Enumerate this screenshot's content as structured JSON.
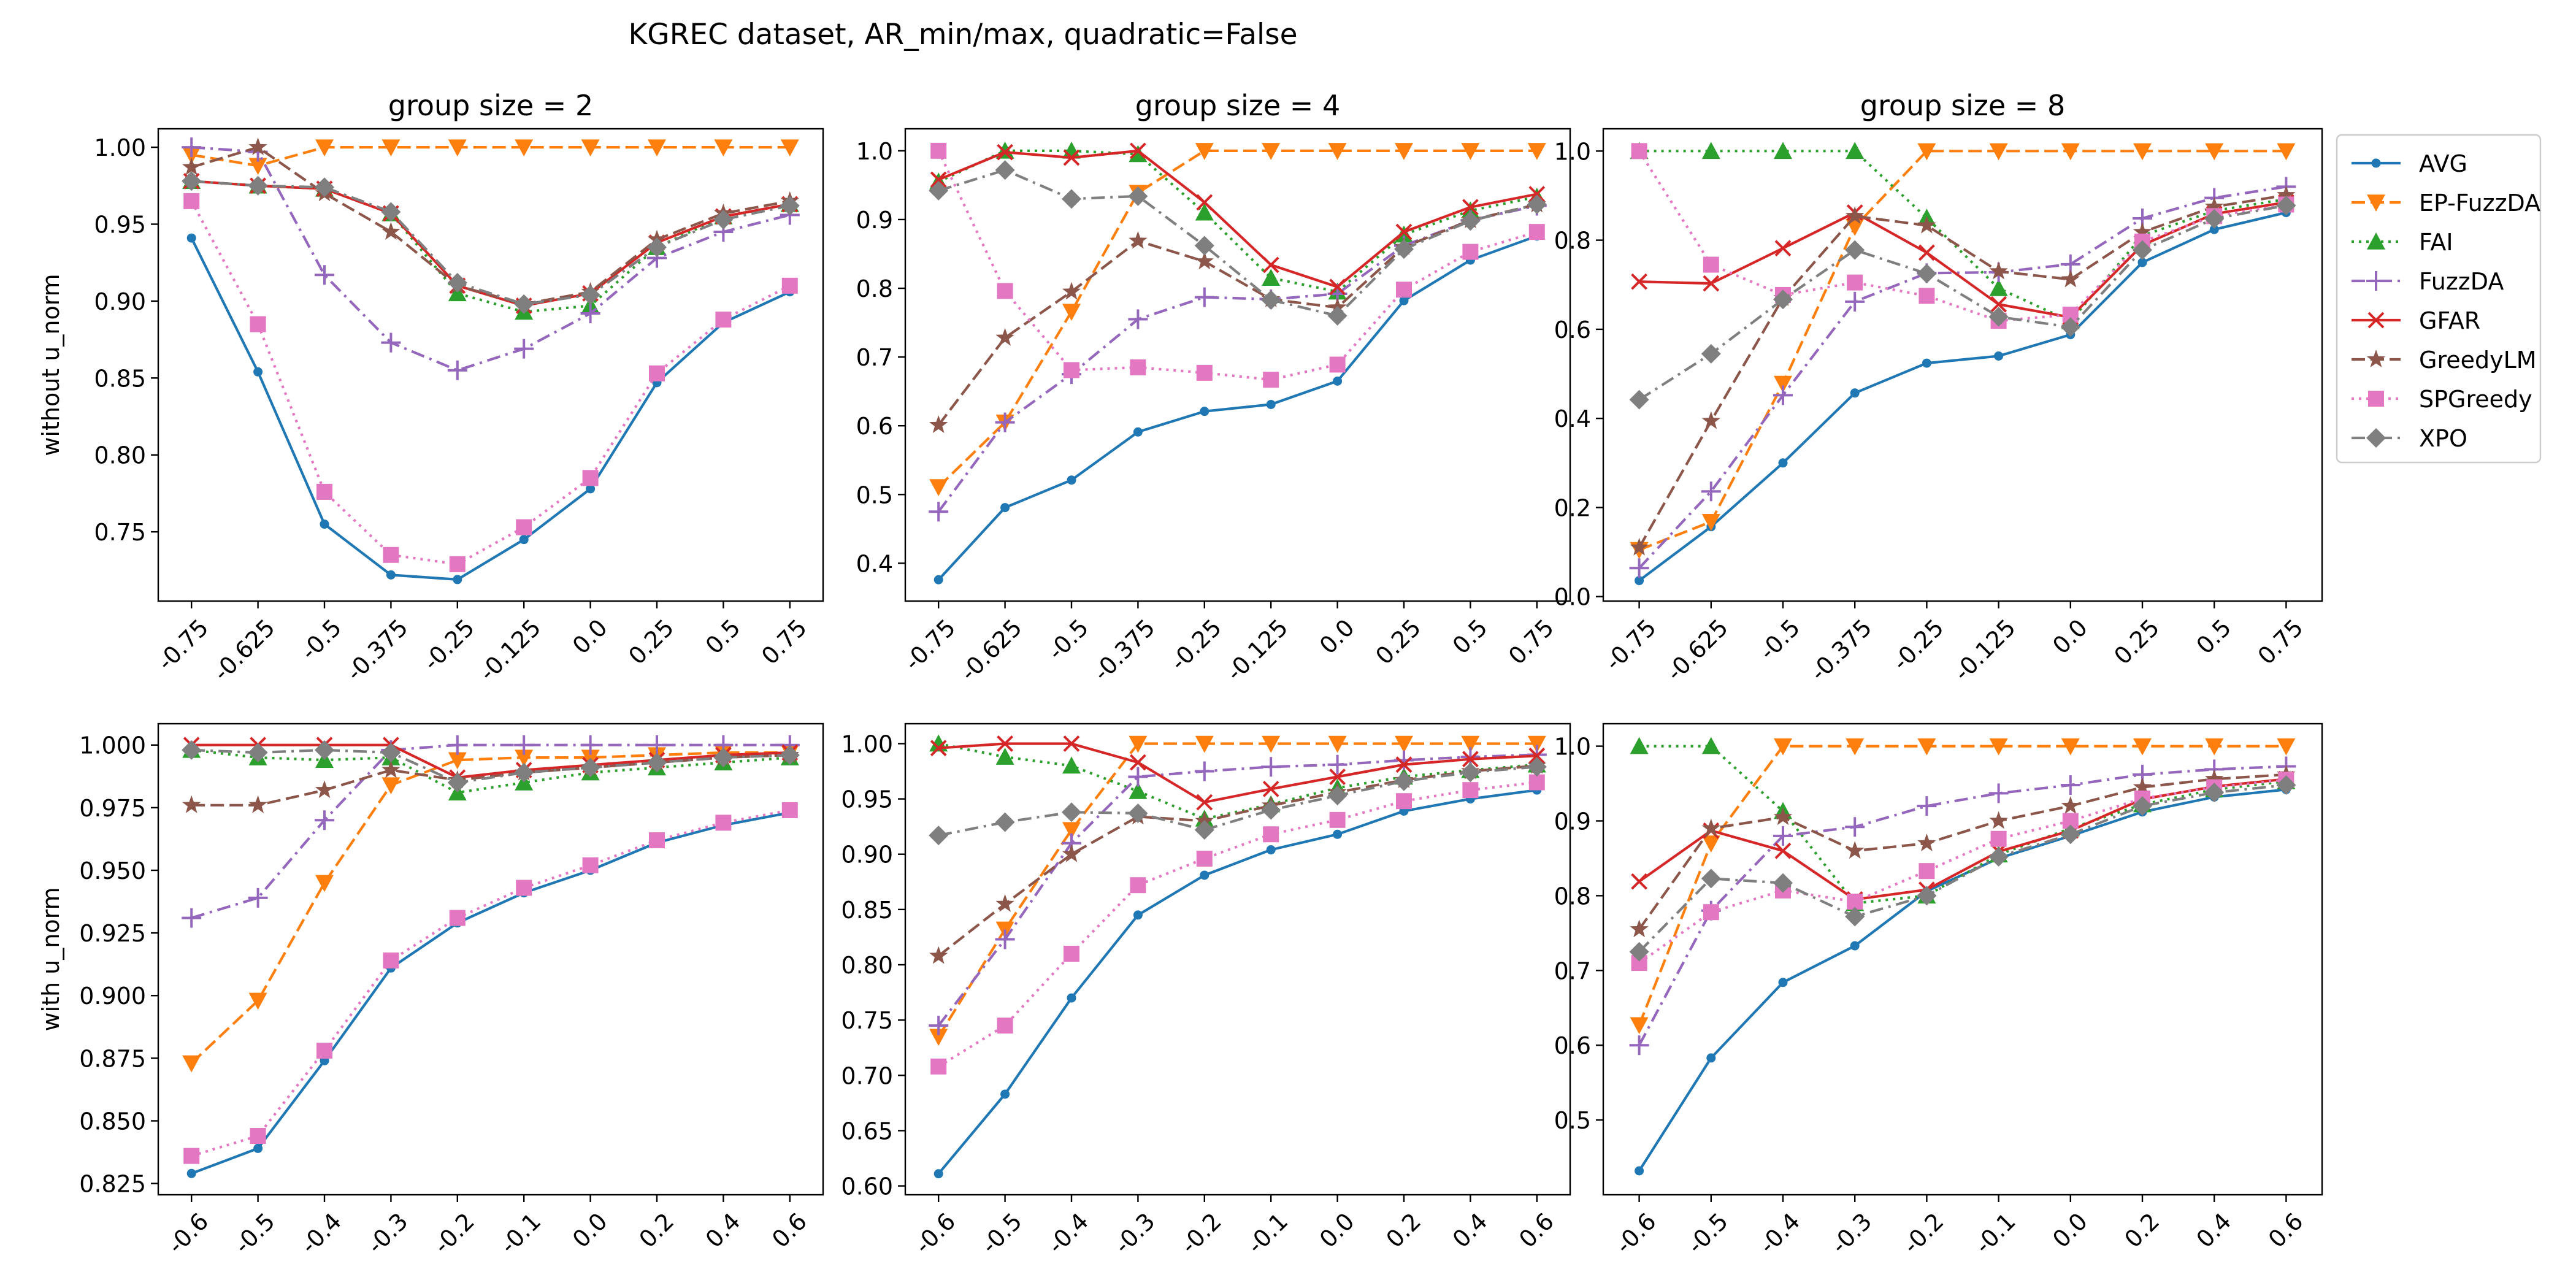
{
  "figure": {
    "suptitle": "KGREC dataset, AR_min/max, quadratic=False"
  },
  "series_styles": [
    {
      "name": "AVG",
      "color": "#1f77b4",
      "dash": "solid",
      "marker": "point"
    },
    {
      "name": "EP-FuzzDA",
      "color": "#ff7f0e",
      "dash": "dashed",
      "marker": "triangle-down"
    },
    {
      "name": "FAI",
      "color": "#2ca02c",
      "dash": "dotted",
      "marker": "triangle-up"
    },
    {
      "name": "FuzzDA",
      "color": "#9467bd",
      "dash": "dashdot",
      "marker": "plus"
    },
    {
      "name": "GFAR",
      "color": "#d62728",
      "dash": "solid",
      "marker": "x"
    },
    {
      "name": "GreedyLM",
      "color": "#8c564b",
      "dash": "dashed",
      "marker": "star"
    },
    {
      "name": "SPGreedy",
      "color": "#e377c2",
      "dash": "dotted",
      "marker": "square"
    },
    {
      "name": "XPO",
      "color": "#7f7f7f",
      "dash": "dashdot",
      "marker": "diamond"
    }
  ],
  "legend": {
    "placement": "outside-right-top",
    "entries": [
      "AVG",
      "EP-FuzzDA",
      "FAI",
      "FuzzDA",
      "GFAR",
      "GreedyLM",
      "SPGreedy",
      "XPO"
    ]
  },
  "chart_data": [
    {
      "type": "line",
      "row": 0,
      "col": 0,
      "title": "group size = 2",
      "ylabel": "without u_norm",
      "xlabel": "",
      "categories": [
        "-0.75",
        "-0.625",
        "-0.5",
        "-0.375",
        "-0.25",
        "-0.125",
        "0.0",
        "0.25",
        "0.5",
        "0.75"
      ],
      "ylim": [
        0.705,
        1.012
      ],
      "yticks": [
        0.75,
        0.8,
        0.85,
        0.9,
        0.95,
        1.0
      ],
      "ytick_labels": [
        "0.75",
        "0.80",
        "0.85",
        "0.90",
        "0.95",
        "1.00"
      ],
      "series": [
        {
          "name": "AVG",
          "values": [
            0.941,
            0.854,
            0.755,
            0.722,
            0.719,
            0.745,
            0.778,
            0.847,
            0.886,
            0.906
          ]
        },
        {
          "name": "EP-FuzzDA",
          "values": [
            0.995,
            0.988,
            1.0,
            1.0,
            1.0,
            1.0,
            1.0,
            1.0,
            1.0,
            1.0
          ]
        },
        {
          "name": "FAI",
          "values": [
            0.978,
            0.975,
            0.973,
            0.957,
            0.905,
            0.893,
            0.897,
            0.935,
            0.955,
            0.963
          ]
        },
        {
          "name": "FuzzDA",
          "values": [
            1.0,
            0.997,
            0.917,
            0.873,
            0.855,
            0.869,
            0.892,
            0.928,
            0.945,
            0.956
          ]
        },
        {
          "name": "GFAR",
          "values": [
            0.978,
            0.975,
            0.973,
            0.957,
            0.91,
            0.897,
            0.905,
            0.938,
            0.955,
            0.963
          ]
        },
        {
          "name": "GreedyLM",
          "values": [
            0.987,
            1.0,
            0.97,
            0.945,
            0.91,
            0.898,
            0.906,
            0.94,
            0.957,
            0.965
          ]
        },
        {
          "name": "SPGreedy",
          "values": [
            0.965,
            0.885,
            0.776,
            0.735,
            0.729,
            0.753,
            0.785,
            0.853,
            0.888,
            0.91
          ]
        },
        {
          "name": "XPO",
          "values": [
            0.978,
            0.975,
            0.974,
            0.958,
            0.912,
            0.898,
            0.904,
            0.935,
            0.953,
            0.962
          ]
        }
      ]
    },
    {
      "type": "line",
      "row": 0,
      "col": 1,
      "title": "group size = 4",
      "ylabel": "",
      "xlabel": "",
      "categories": [
        "-0.75",
        "-0.625",
        "-0.5",
        "-0.375",
        "-0.25",
        "-0.125",
        "0.0",
        "0.25",
        "0.5",
        "0.75"
      ],
      "ylim": [
        0.345,
        1.032
      ],
      "yticks": [
        0.4,
        0.5,
        0.6,
        0.7,
        0.8,
        0.9,
        1.0
      ],
      "ytick_labels": [
        "0.4",
        "0.5",
        "0.6",
        "0.7",
        "0.8",
        "0.9",
        "1.0"
      ],
      "series": [
        {
          "name": "AVG",
          "values": [
            0.376,
            0.481,
            0.521,
            0.591,
            0.621,
            0.631,
            0.665,
            0.782,
            0.841,
            0.876
          ]
        },
        {
          "name": "EP-FuzzDA",
          "values": [
            0.511,
            0.605,
            0.766,
            0.939,
            1.0,
            1.0,
            1.0,
            1.0,
            1.0,
            1.0
          ]
        },
        {
          "name": "FAI",
          "values": [
            0.955,
            1.0,
            1.0,
            0.995,
            0.91,
            0.815,
            0.795,
            0.878,
            0.913,
            0.933
          ]
        },
        {
          "name": "FuzzDA",
          "values": [
            0.475,
            0.605,
            0.675,
            0.755,
            0.787,
            0.784,
            0.792,
            0.862,
            0.899,
            0.92
          ]
        },
        {
          "name": "GFAR",
          "values": [
            0.958,
            0.998,
            0.99,
            1.0,
            0.925,
            0.834,
            0.802,
            0.882,
            0.918,
            0.937
          ]
        },
        {
          "name": "GreedyLM",
          "values": [
            0.601,
            0.728,
            0.795,
            0.869,
            0.839,
            0.784,
            0.772,
            0.86,
            0.899,
            0.922
          ]
        },
        {
          "name": "SPGreedy",
          "values": [
            1.0,
            0.796,
            0.681,
            0.685,
            0.677,
            0.667,
            0.689,
            0.798,
            0.853,
            0.882
          ]
        },
        {
          "name": "XPO",
          "values": [
            0.942,
            0.972,
            0.93,
            0.934,
            0.862,
            0.783,
            0.76,
            0.857,
            0.898,
            0.922
          ]
        }
      ]
    },
    {
      "type": "line",
      "row": 0,
      "col": 2,
      "title": "group size = 8",
      "ylabel": "",
      "xlabel": "",
      "categories": [
        "-0.75",
        "-0.625",
        "-0.5",
        "-0.375",
        "-0.25",
        "-0.125",
        "0.0",
        "0.25",
        "0.5",
        "0.75"
      ],
      "ylim": [
        -0.01,
        1.05
      ],
      "yticks": [
        0.0,
        0.2,
        0.4,
        0.6,
        0.8,
        1.0
      ],
      "ytick_labels": [
        "0.0",
        "0.2",
        "0.4",
        "0.6",
        "0.8",
        "1.0"
      ],
      "series": [
        {
          "name": "AVG",
          "values": [
            0.036,
            0.157,
            0.3,
            0.457,
            0.524,
            0.54,
            0.588,
            0.75,
            0.824,
            0.862
          ]
        },
        {
          "name": "EP-FuzzDA",
          "values": [
            0.105,
            0.168,
            0.478,
            0.83,
            1.0,
            1.0,
            1.0,
            1.0,
            1.0,
            1.0
          ]
        },
        {
          "name": "FAI",
          "values": [
            1.0,
            1.0,
            1.0,
            1.0,
            0.85,
            0.692,
            0.618,
            0.81,
            0.866,
            0.892
          ]
        },
        {
          "name": "FuzzDA",
          "values": [
            0.064,
            0.236,
            0.452,
            0.662,
            0.726,
            0.728,
            0.746,
            0.849,
            0.895,
            0.92
          ]
        },
        {
          "name": "GFAR",
          "values": [
            0.707,
            0.703,
            0.782,
            0.862,
            0.772,
            0.656,
            0.627,
            0.789,
            0.859,
            0.885
          ]
        },
        {
          "name": "GreedyLM",
          "values": [
            0.11,
            0.394,
            0.67,
            0.854,
            0.833,
            0.73,
            0.712,
            0.818,
            0.875,
            0.901
          ]
        },
        {
          "name": "SPGreedy",
          "values": [
            1.0,
            0.745,
            0.677,
            0.705,
            0.675,
            0.619,
            0.633,
            0.797,
            0.854,
            0.88
          ]
        },
        {
          "name": "XPO",
          "values": [
            0.442,
            0.545,
            0.667,
            0.778,
            0.725,
            0.628,
            0.605,
            0.778,
            0.848,
            0.878
          ]
        }
      ]
    },
    {
      "type": "line",
      "row": 1,
      "col": 0,
      "title": "",
      "ylabel": "with u_norm",
      "xlabel": "",
      "categories": [
        "-0.6",
        "-0.5",
        "-0.4",
        "-0.3",
        "-0.2",
        "-0.1",
        "0.0",
        "0.2",
        "0.4",
        "0.6"
      ],
      "ylim": [
        0.8205,
        1.0085
      ],
      "yticks": [
        0.825,
        0.85,
        0.875,
        0.9,
        0.925,
        0.95,
        0.975,
        1.0
      ],
      "ytick_labels": [
        "0.825",
        "0.850",
        "0.875",
        "0.900",
        "0.925",
        "0.950",
        "0.975",
        "1.000"
      ],
      "series": [
        {
          "name": "AVG",
          "values": [
            0.829,
            0.839,
            0.874,
            0.911,
            0.929,
            0.941,
            0.95,
            0.961,
            0.968,
            0.973
          ]
        },
        {
          "name": "EP-FuzzDA",
          "values": [
            0.873,
            0.898,
            0.945,
            0.984,
            0.994,
            0.995,
            0.995,
            0.996,
            0.997,
            0.997
          ]
        },
        {
          "name": "FAI",
          "values": [
            0.998,
            0.995,
            0.994,
            0.995,
            0.981,
            0.985,
            0.989,
            0.991,
            0.993,
            0.995
          ]
        },
        {
          "name": "FuzzDA",
          "values": [
            0.931,
            0.939,
            0.97,
            0.998,
            1.0,
            1.0,
            1.0,
            1.0,
            1.0,
            1.0
          ]
        },
        {
          "name": "GFAR",
          "values": [
            1.0,
            1.0,
            1.0,
            1.0,
            0.987,
            0.99,
            0.992,
            0.994,
            0.996,
            0.997
          ]
        },
        {
          "name": "GreedyLM",
          "values": [
            0.976,
            0.976,
            0.982,
            0.99,
            0.986,
            0.989,
            0.991,
            0.993,
            0.995,
            0.996
          ]
        },
        {
          "name": "SPGreedy",
          "values": [
            0.836,
            0.844,
            0.878,
            0.914,
            0.931,
            0.943,
            0.952,
            0.962,
            0.969,
            0.974
          ]
        },
        {
          "name": "XPO",
          "values": [
            0.998,
            0.997,
            0.998,
            0.997,
            0.985,
            0.989,
            0.991,
            0.993,
            0.995,
            0.996
          ]
        }
      ]
    },
    {
      "type": "line",
      "row": 1,
      "col": 1,
      "title": "",
      "ylabel": "",
      "xlabel": "",
      "categories": [
        "-0.6",
        "-0.5",
        "-0.4",
        "-0.3",
        "-0.2",
        "-0.1",
        "0.0",
        "0.2",
        "0.4",
        "0.6"
      ],
      "ylim": [
        0.592,
        1.018
      ],
      "yticks": [
        0.6,
        0.65,
        0.7,
        0.75,
        0.8,
        0.85,
        0.9,
        0.95,
        1.0
      ],
      "ytick_labels": [
        "0.60",
        "0.65",
        "0.70",
        "0.75",
        "0.80",
        "0.85",
        "0.90",
        "0.95",
        "1.00"
      ],
      "series": [
        {
          "name": "AVG",
          "values": [
            0.611,
            0.683,
            0.77,
            0.845,
            0.881,
            0.904,
            0.918,
            0.939,
            0.95,
            0.958
          ]
        },
        {
          "name": "EP-FuzzDA",
          "values": [
            0.735,
            0.832,
            0.922,
            1.0,
            1.0,
            1.0,
            1.0,
            1.0,
            1.0,
            1.0
          ]
        },
        {
          "name": "FAI",
          "values": [
            1.0,
            0.988,
            0.98,
            0.957,
            0.932,
            0.945,
            0.96,
            0.97,
            0.976,
            0.981
          ]
        },
        {
          "name": "FuzzDA",
          "values": [
            0.745,
            0.823,
            0.91,
            0.97,
            0.975,
            0.979,
            0.981,
            0.985,
            0.988,
            0.99
          ]
        },
        {
          "name": "GFAR",
          "values": [
            0.996,
            1.0,
            1.0,
            0.983,
            0.947,
            0.959,
            0.97,
            0.981,
            0.986,
            0.989
          ]
        },
        {
          "name": "GreedyLM",
          "values": [
            0.808,
            0.855,
            0.9,
            0.934,
            0.93,
            0.944,
            0.956,
            0.967,
            0.975,
            0.98
          ]
        },
        {
          "name": "SPGreedy",
          "values": [
            0.708,
            0.745,
            0.81,
            0.872,
            0.896,
            0.918,
            0.931,
            0.948,
            0.958,
            0.965
          ]
        },
        {
          "name": "XPO",
          "values": [
            0.917,
            0.929,
            0.938,
            0.937,
            0.922,
            0.94,
            0.953,
            0.966,
            0.974,
            0.979
          ]
        }
      ]
    },
    {
      "type": "line",
      "row": 1,
      "col": 2,
      "title": "",
      "ylabel": "",
      "xlabel": "",
      "categories": [
        "-0.6",
        "-0.5",
        "-0.4",
        "-0.3",
        "-0.2",
        "-0.1",
        "0.0",
        "0.2",
        "0.4",
        "0.6"
      ],
      "ylim": [
        0.4,
        1.03
      ],
      "yticks": [
        0.5,
        0.6,
        0.7,
        0.8,
        0.9,
        1.0
      ],
      "ytick_labels": [
        "0.5",
        "0.6",
        "0.7",
        "0.8",
        "0.9",
        "1.0"
      ],
      "series": [
        {
          "name": "AVG",
          "values": [
            0.432,
            0.583,
            0.684,
            0.733,
            0.806,
            0.85,
            0.88,
            0.912,
            0.932,
            0.942
          ]
        },
        {
          "name": "EP-FuzzDA",
          "values": [
            0.627,
            0.87,
            1.0,
            1.0,
            1.0,
            1.0,
            1.0,
            1.0,
            1.0,
            1.0
          ]
        },
        {
          "name": "FAI",
          "values": [
            1.0,
            1.0,
            0.913,
            0.79,
            0.8,
            0.855,
            0.89,
            0.922,
            0.942,
            0.953
          ]
        },
        {
          "name": "FuzzDA",
          "values": [
            0.6,
            0.78,
            0.88,
            0.892,
            0.92,
            0.937,
            0.948,
            0.962,
            0.969,
            0.973
          ]
        },
        {
          "name": "GFAR",
          "values": [
            0.819,
            0.887,
            0.86,
            0.795,
            0.808,
            0.859,
            0.887,
            0.929,
            0.946,
            0.956
          ]
        },
        {
          "name": "GreedyLM",
          "values": [
            0.755,
            0.89,
            0.905,
            0.86,
            0.87,
            0.9,
            0.92,
            0.945,
            0.956,
            0.962
          ]
        },
        {
          "name": "SPGreedy",
          "values": [
            0.71,
            0.778,
            0.807,
            0.792,
            0.833,
            0.876,
            0.9,
            0.93,
            0.945,
            0.955
          ]
        },
        {
          "name": "XPO",
          "values": [
            0.725,
            0.823,
            0.817,
            0.772,
            0.8,
            0.852,
            0.882,
            0.92,
            0.938,
            0.948
          ]
        }
      ]
    }
  ]
}
